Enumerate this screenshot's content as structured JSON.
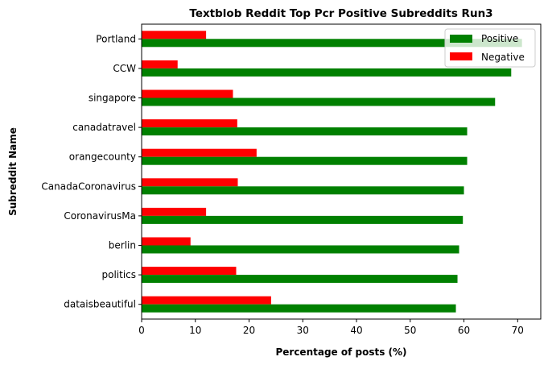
{
  "chart_data": {
    "type": "bar",
    "orientation": "horizontal",
    "title": "Textblob Reddit Top Pcr Positive Subreddits Run3",
    "xlabel": "Percentage of posts (%)",
    "ylabel": "Subreddit Name",
    "xlim": [
      0,
      74.3
    ],
    "xticks": [
      "0",
      "10",
      "20",
      "30",
      "40",
      "50",
      "60",
      "70"
    ],
    "categories": [
      "Portland",
      "CCW",
      "singapore",
      "canadatravel",
      "orangecounty",
      "CanadaCoronavirus",
      "CoronavirusMa",
      "berlin",
      "politics",
      "dataisbeautiful"
    ],
    "series": [
      {
        "name": "Positive",
        "color": "#008000",
        "values": [
          70.8,
          68.8,
          65.8,
          60.6,
          60.6,
          60.0,
          59.8,
          59.1,
          58.8,
          58.5
        ]
      },
      {
        "name": "Negative",
        "color": "#ff0000",
        "values": [
          12.0,
          6.7,
          17.0,
          17.8,
          21.4,
          17.9,
          12.0,
          9.1,
          17.6,
          24.1
        ]
      }
    ],
    "legend_position": "top-right",
    "grid": false
  }
}
